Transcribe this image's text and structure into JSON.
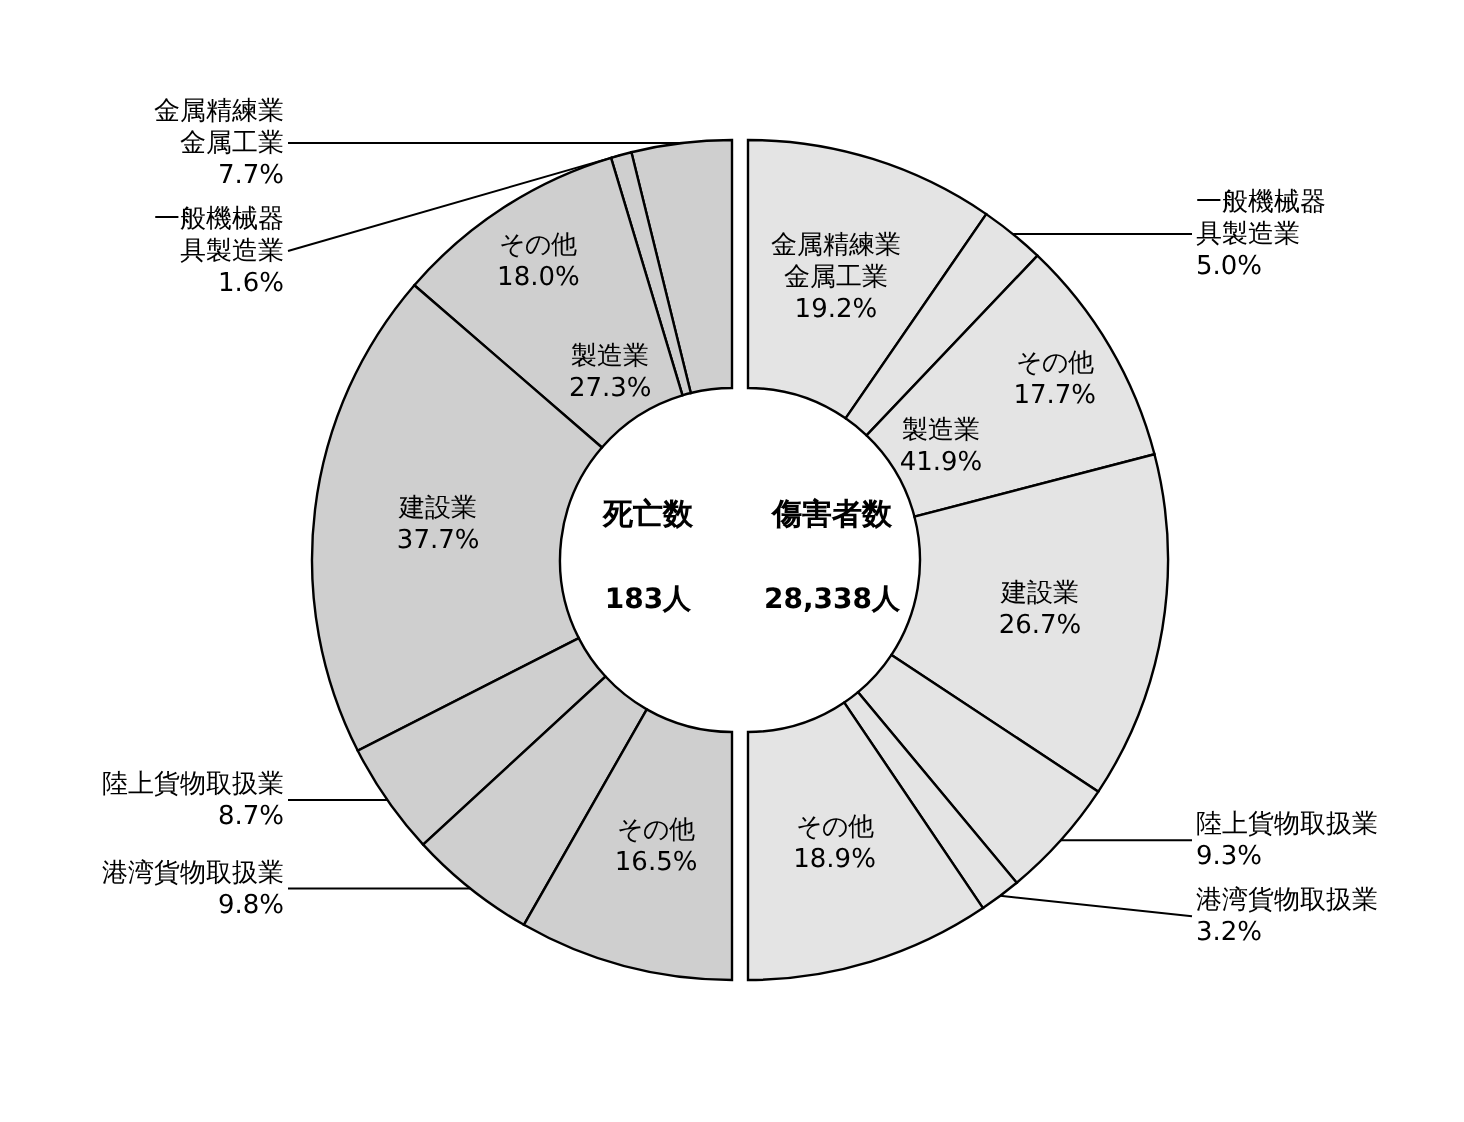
{
  "chart_data": [
    {
      "type": "donut",
      "title": "死亡数",
      "subtitle": "183人",
      "categories": [
        "金属精練業金属工業",
        "一般機械器具製造業",
        "その他",
        "建設業",
        "陸上貨物取扱業",
        "港湾貨物取扱業",
        "その他"
      ],
      "values": [
        7.7,
        1.6,
        18.0,
        37.7,
        8.7,
        9.8,
        16.5
      ],
      "value_labels": [
        "7.7%",
        "1.6%",
        "18.0%",
        "37.7%",
        "8.7%",
        "9.8%",
        "16.5%"
      ],
      "colors": [
        "#cfcfcf",
        "#cfcfcf",
        "#cfcfcf",
        "#cfcfcf",
        "#cfcfcf",
        "#cfcfcf",
        "#cfcfcf"
      ],
      "annotations": [
        {
          "text": "製造業 27.3%",
          "x": "その他"
        }
      ]
    },
    {
      "type": "donut",
      "title": "傷害者数",
      "subtitle": "28,338人",
      "categories": [
        "金属精練業金属工業",
        "一般機械器具製造業",
        "その他",
        "建設業",
        "陸上貨物取扱業",
        "港湾貨物取扱業",
        "その他"
      ],
      "values": [
        19.2,
        5.0,
        17.7,
        26.7,
        9.3,
        3.2,
        18.9
      ],
      "value_labels": [
        "19.2%",
        "5.0%",
        "17.7%",
        "26.7%",
        "9.3%",
        "3.2%",
        "18.9%"
      ],
      "colors": [
        "#e4e4e4",
        "#e4e4e4",
        "#e4e4e4",
        "#e4e4e4",
        "#e4e4e4",
        "#e4e4e4",
        "#e4e4e4"
      ],
      "annotations": [
        {
          "text": "製造業 41.9%",
          "x": "その他"
        }
      ]
    }
  ]
}
